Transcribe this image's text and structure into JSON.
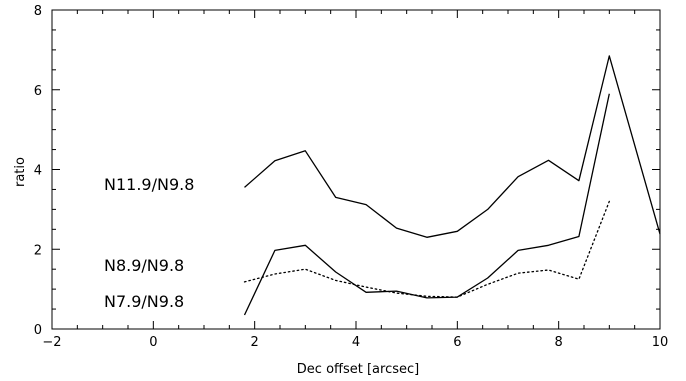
{
  "chart_data": {
    "type": "line",
    "xlabel": "Dec offset [arcsec]",
    "ylabel": "ratio",
    "xlim": [
      -2,
      10
    ],
    "ylim": [
      0,
      8
    ],
    "xticks": [
      -2,
      0,
      2,
      4,
      6,
      8,
      10
    ],
    "yticks": [
      0,
      2,
      4,
      6,
      8
    ],
    "grid": false,
    "legend": "inline labels",
    "series": [
      {
        "name": "N11.9/N9.8",
        "style": "solid",
        "color": "#000000",
        "x": [
          1.8,
          2.4,
          3.0,
          3.6,
          4.2,
          4.8,
          5.4,
          6.0,
          6.6,
          7.2,
          7.8,
          8.4,
          9.0,
          10.0
        ],
        "y": [
          3.55,
          4.22,
          4.47,
          3.3,
          3.12,
          2.53,
          2.3,
          2.45,
          3.0,
          3.82,
          4.23,
          3.72,
          6.85,
          2.38
        ]
      },
      {
        "name": "N8.9/N9.8",
        "style": "solid",
        "color": "#000000",
        "x": [
          1.8,
          2.4,
          3.0,
          3.6,
          4.2,
          4.8,
          5.4,
          6.0,
          6.6,
          7.2,
          7.8,
          8.4,
          9.0
        ],
        "y": [
          0.35,
          1.97,
          2.1,
          1.43,
          0.92,
          0.95,
          0.78,
          0.8,
          1.28,
          1.97,
          2.1,
          2.32,
          5.9
        ]
      },
      {
        "name": "N7.9/N9.8",
        "style": "dotted",
        "color": "#000000",
        "x": [
          1.8,
          2.4,
          3.0,
          3.6,
          4.2,
          4.8,
          5.4,
          6.0,
          6.6,
          7.2,
          7.8,
          8.4,
          9.0
        ],
        "y": [
          1.18,
          1.38,
          1.5,
          1.22,
          1.05,
          0.9,
          0.82,
          0.8,
          1.12,
          1.4,
          1.48,
          1.25,
          3.2
        ]
      }
    ]
  }
}
